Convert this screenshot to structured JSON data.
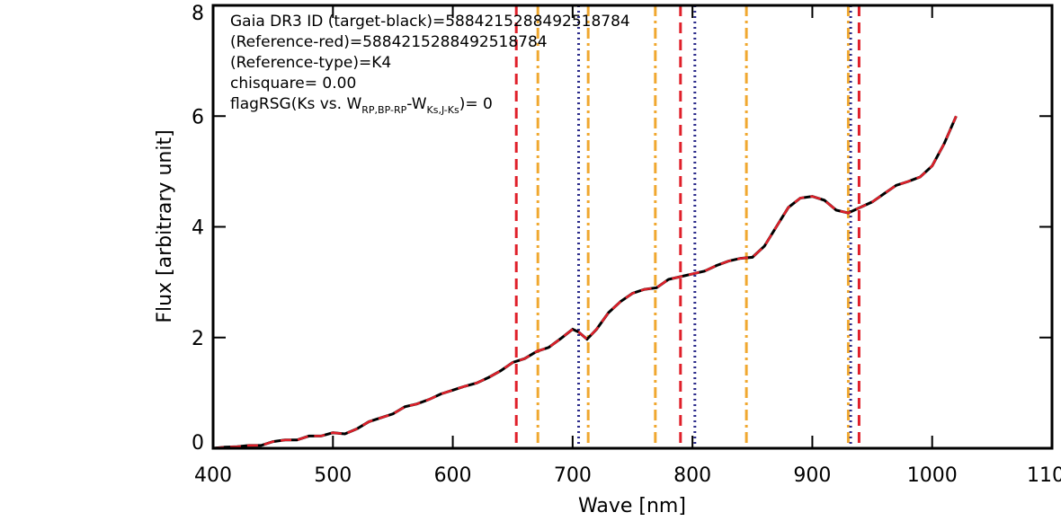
{
  "chart_data": {
    "type": "line",
    "x_label": "Wave [nm]",
    "y_label": "Flux [arbitrary unit]",
    "annotations": [
      "Gaia DR3 ID (target-black)=5884215288492518784",
      "(Reference-red)=5884215288492518784",
      "(Reference-type)=K4",
      "chisquare= 0.00"
    ],
    "flag_text": [
      "flagRSG(Ks vs. W",
      "RP,BP-RP",
      "-W",
      "Ks,J-Ks",
      ")= 0"
    ],
    "x": [
      400,
      410,
      420,
      430,
      440,
      450,
      460,
      470,
      480,
      490,
      500,
      510,
      520,
      530,
      540,
      550,
      560,
      570,
      580,
      590,
      600,
      610,
      620,
      630,
      640,
      650,
      660,
      670,
      680,
      690,
      700,
      705,
      712,
      720,
      730,
      740,
      750,
      760,
      770,
      780,
      790,
      800,
      810,
      820,
      830,
      840,
      850,
      860,
      870,
      880,
      890,
      900,
      910,
      920,
      930,
      940,
      950,
      960,
      970,
      980,
      990,
      1000,
      1010,
      1020
    ],
    "series": [
      {
        "color": "#000000",
        "dash": "solid",
        "values": [
          0.0,
          0.02,
          0.03,
          0.05,
          0.05,
          0.12,
          0.15,
          0.15,
          0.22,
          0.22,
          0.28,
          0.26,
          0.35,
          0.48,
          0.55,
          0.62,
          0.75,
          0.8,
          0.88,
          0.98,
          1.05,
          1.12,
          1.18,
          1.28,
          1.4,
          1.55,
          1.62,
          1.75,
          1.82,
          1.98,
          2.15,
          2.1,
          1.97,
          2.15,
          2.45,
          2.65,
          2.8,
          2.87,
          2.9,
          3.05,
          3.1,
          3.15,
          3.2,
          3.3,
          3.38,
          3.43,
          3.45,
          3.65,
          4.0,
          4.35,
          4.52,
          4.55,
          4.48,
          4.3,
          4.25,
          4.35,
          4.45,
          4.6,
          4.75,
          4.82,
          4.9,
          5.1,
          5.5,
          6.0
        ]
      },
      {
        "color": "#e0202a",
        "dash": "dashed",
        "values": [
          0.0,
          0.02,
          0.03,
          0.05,
          0.05,
          0.12,
          0.15,
          0.15,
          0.22,
          0.22,
          0.28,
          0.26,
          0.35,
          0.48,
          0.55,
          0.62,
          0.75,
          0.8,
          0.88,
          0.98,
          1.05,
          1.12,
          1.18,
          1.28,
          1.4,
          1.55,
          1.62,
          1.75,
          1.82,
          1.98,
          2.15,
          2.1,
          1.97,
          2.15,
          2.45,
          2.65,
          2.8,
          2.87,
          2.9,
          3.05,
          3.1,
          3.15,
          3.2,
          3.3,
          3.38,
          3.43,
          3.45,
          3.65,
          4.0,
          4.35,
          4.52,
          4.55,
          4.48,
          4.3,
          4.25,
          4.35,
          4.45,
          4.6,
          4.75,
          4.82,
          4.9,
          5.1,
          5.5,
          6.0
        ]
      }
    ],
    "vlines": [
      {
        "color": "#e0202a",
        "dash": "dashed",
        "x": [
          653,
          790,
          939
        ]
      },
      {
        "color": "#f0a830",
        "dash": "dashdot",
        "x": [
          671,
          713,
          769,
          845,
          930
        ]
      },
      {
        "color": "#2a2a8a",
        "dash": "dotted",
        "x": [
          705,
          802,
          932
        ]
      }
    ],
    "xlim": [
      400,
      1100
    ],
    "xticks": [
      400,
      500,
      600,
      700,
      800,
      900,
      1000,
      1100
    ],
    "ylim": [
      0,
      8
    ],
    "yticks": [
      0,
      2,
      4,
      6,
      8
    ]
  }
}
